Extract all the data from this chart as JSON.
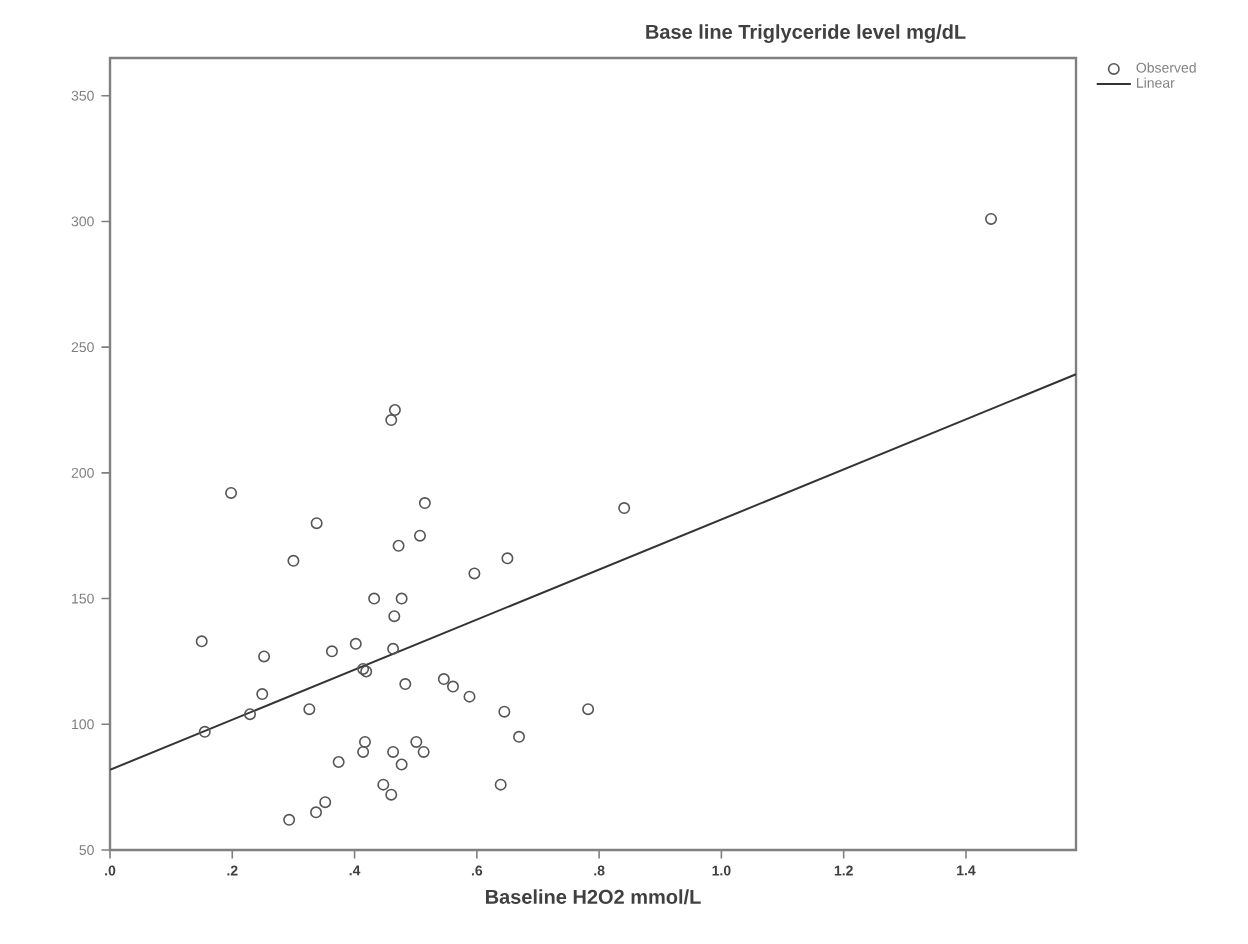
{
  "chart_data": {
    "type": "scatter",
    "title": "Base line Triglyceride level mg/dL",
    "xlabel": "Baseline H2O2 mmol/L",
    "xlim": [
      0,
      1.58
    ],
    "ylim": [
      50,
      365
    ],
    "xticks": [
      {
        "value": 0,
        "label": ".0"
      },
      {
        "value": 0.2,
        "label": ".2"
      },
      {
        "value": 0.4,
        "label": ".4"
      },
      {
        "value": 0.6,
        "label": ".6"
      },
      {
        "value": 0.8,
        "label": ".8"
      },
      {
        "value": 1.0,
        "label": "1.0"
      },
      {
        "value": 1.2,
        "label": "1.2"
      },
      {
        "value": 1.4,
        "label": "1.4"
      }
    ],
    "yticks": [
      50,
      100,
      150,
      200,
      250,
      300,
      350
    ],
    "grid": false,
    "legend": "top right",
    "series": [
      {
        "name": "Observed",
        "marker": "circle",
        "color": "#555555",
        "x": [
          0.198,
          0.515,
          0.338,
          0.507,
          0.472,
          0.3,
          0.65,
          0.596,
          0.432,
          0.477,
          0.465,
          0.15,
          0.402,
          0.363,
          0.463,
          0.252,
          0.414,
          0.419,
          0.483,
          0.546,
          0.561,
          0.588,
          0.249,
          0.229,
          0.155,
          0.326,
          0.645,
          0.782,
          0.669,
          0.417,
          0.501,
          0.414,
          0.463,
          0.374,
          0.477,
          0.513,
          0.447,
          0.46,
          0.639,
          0.352,
          0.337,
          0.293,
          0.841,
          0.466,
          0.46,
          1.441
        ],
        "values": [
          192,
          188,
          180,
          175,
          171,
          165,
          166,
          160,
          150,
          150,
          143,
          133,
          132,
          129,
          130,
          127,
          122,
          121,
          116,
          118,
          115,
          111,
          112,
          104,
          97,
          106,
          105,
          106,
          95,
          93,
          93,
          89,
          89,
          85,
          84,
          89,
          76,
          72,
          76,
          69,
          65,
          62,
          186,
          225,
          221,
          301
        ]
      },
      {
        "name": "Linear",
        "type": "line",
        "marker": "none",
        "color": "#333333",
        "x": [
          0,
          1.58
        ],
        "values": [
          81.9,
          239.2
        ]
      }
    ]
  }
}
